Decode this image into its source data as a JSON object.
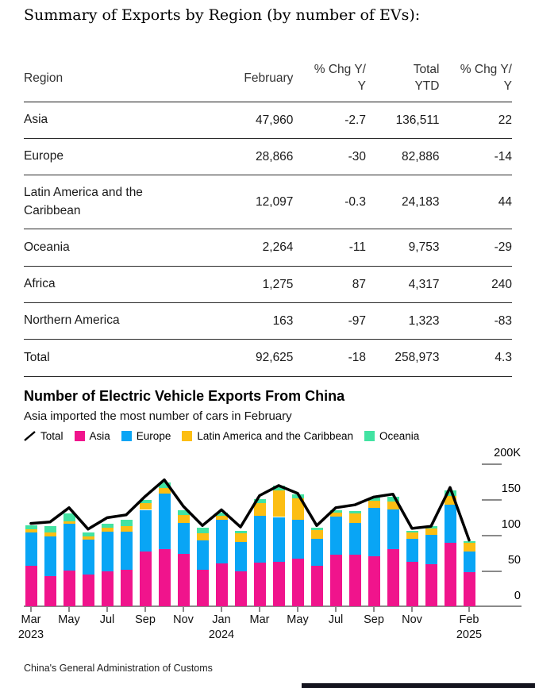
{
  "summary_table": {
    "title": "Summary of Exports by Region (by number of EVs):",
    "columns": [
      {
        "line1": "Region",
        "line2": ""
      },
      {
        "line1": "February",
        "line2": ""
      },
      {
        "line1": "% Chg Y/",
        "line2": "Y"
      },
      {
        "line1": "Total",
        "line2": "YTD"
      },
      {
        "line1": "% Chg Y/",
        "line2": "Y"
      }
    ],
    "rows": [
      {
        "region": "Asia",
        "february": "47,960",
        "chg_yy": "-2.7",
        "total_ytd": "136,511",
        "ytd_chg_yy": "22"
      },
      {
        "region": "Europe",
        "february": "28,866",
        "chg_yy": "-30",
        "total_ytd": "82,886",
        "ytd_chg_yy": "-14"
      },
      {
        "region": "Latin America and the Caribbean",
        "february": "12,097",
        "chg_yy": "-0.3",
        "total_ytd": "24,183",
        "ytd_chg_yy": "44"
      },
      {
        "region": "Oceania",
        "february": "2,264",
        "chg_yy": "-11",
        "total_ytd": "9,753",
        "ytd_chg_yy": "-29"
      },
      {
        "region": "Africa",
        "february": "1,275",
        "chg_yy": "87",
        "total_ytd": "4,317",
        "ytd_chg_yy": "240"
      },
      {
        "region": "Northern America",
        "february": "163",
        "chg_yy": "-97",
        "total_ytd": "1,323",
        "ytd_chg_yy": "-83"
      },
      {
        "region": "Total",
        "february": "92,625",
        "chg_yy": "-18",
        "total_ytd": "258,973",
        "ytd_chg_yy": "4.3"
      }
    ]
  },
  "chart": {
    "title": "Number of Electric Vehicle Exports From China",
    "subtitle": "Asia imported the most number of cars in February",
    "legend": [
      {
        "label": "Total",
        "type": "line",
        "color": "#000000"
      },
      {
        "label": "Asia",
        "type": "swatch",
        "color": "#F0148C"
      },
      {
        "label": "Europe",
        "type": "swatch",
        "color": "#09A5F5"
      },
      {
        "label": "Latin America and the Caribbean",
        "type": "swatch",
        "color": "#FCBE13"
      },
      {
        "label": "Oceania",
        "type": "swatch",
        "color": "#42E3A2"
      }
    ],
    "source": "China's General Administration of Customs",
    "bottom_strip_color": "#14141E"
  },
  "chart_data": {
    "type": "bar",
    "stacked": true,
    "line_overlay": true,
    "unit": "thousands of EVs",
    "ylim": [
      0,
      200
    ],
    "grid": false,
    "legend_position": "top",
    "y_ticks": [
      {
        "value": 200,
        "label": "200K"
      },
      {
        "value": 150,
        "label": "150"
      },
      {
        "value": 100,
        "label": "100"
      },
      {
        "value": 50,
        "label": "50"
      },
      {
        "value": 0,
        "label": "0"
      }
    ],
    "x": [
      "Mar 2023",
      "Apr 2023",
      "May 2023",
      "Jun 2023",
      "Jul 2023",
      "Aug 2023",
      "Sep 2023",
      "Oct 2023",
      "Nov 2023",
      "Dec 2023",
      "Jan 2024",
      "Feb 2024",
      "Mar 2024",
      "Apr 2024",
      "May 2024",
      "Jun 2024",
      "Jul 2024",
      "Aug 2024",
      "Sep 2024",
      "Oct 2024",
      "Nov 2024",
      "Dec 2024",
      "Jan 2025",
      "Feb 2025"
    ],
    "x_axis_ticks": [
      {
        "i": 0,
        "label": "Mar",
        "year": "2023"
      },
      {
        "i": 2,
        "label": "May",
        "year": ""
      },
      {
        "i": 4,
        "label": "Jul",
        "year": ""
      },
      {
        "i": 6,
        "label": "Sep",
        "year": ""
      },
      {
        "i": 8,
        "label": "Nov",
        "year": ""
      },
      {
        "i": 10,
        "label": "Jan",
        "year": "2024"
      },
      {
        "i": 12,
        "label": "Mar",
        "year": ""
      },
      {
        "i": 14,
        "label": "May",
        "year": ""
      },
      {
        "i": 16,
        "label": "Jul",
        "year": ""
      },
      {
        "i": 18,
        "label": "Sep",
        "year": ""
      },
      {
        "i": 20,
        "label": "Nov",
        "year": ""
      },
      {
        "i": 23,
        "label": "Feb",
        "year": "2025"
      }
    ],
    "series": [
      {
        "name": "Asia",
        "color": "#F0148C",
        "values": [
          57,
          42,
          50,
          44,
          49,
          51,
          77,
          80,
          73,
          51,
          60,
          49.3,
          61,
          62,
          67,
          57,
          72,
          72,
          70,
          80,
          62,
          59,
          88.6,
          48
        ]
      },
      {
        "name": "Europe",
        "color": "#09A5F5",
        "values": [
          46,
          56,
          66,
          49,
          55,
          53,
          58,
          78,
          44,
          41,
          61,
          41.2,
          66,
          63,
          54,
          37,
          54,
          45,
          68,
          56,
          32,
          41,
          54,
          28.9
        ]
      },
      {
        "name": "Latin America and the Caribbean",
        "color": "#FCBE13",
        "values": [
          4.5,
          5,
          3,
          5,
          6,
          8,
          9,
          8,
          11,
          10,
          5.5,
          12.1,
          17,
          37,
          30,
          13,
          5.5,
          13,
          10,
          11,
          9,
          8.5,
          12.1,
          12.1
        ]
      },
      {
        "name": "Oceania",
        "color": "#42E3A2",
        "values": [
          6,
          9,
          11,
          5,
          6,
          9,
          4.5,
          7,
          6,
          8,
          4.5,
          2.5,
          5.5,
          6.5,
          5.5,
          3.5,
          2.5,
          3,
          4,
          6,
          3,
          3.5,
          7.5,
          2.3
        ]
      }
    ],
    "line_series": {
      "name": "Total",
      "color": "#000000",
      "values": [
        116,
        118,
        138,
        108,
        124,
        128,
        154,
        177,
        140,
        113,
        135,
        111,
        155,
        169,
        158,
        113,
        138,
        142,
        153,
        157,
        109,
        112,
        166.3,
        92.6
      ]
    }
  }
}
